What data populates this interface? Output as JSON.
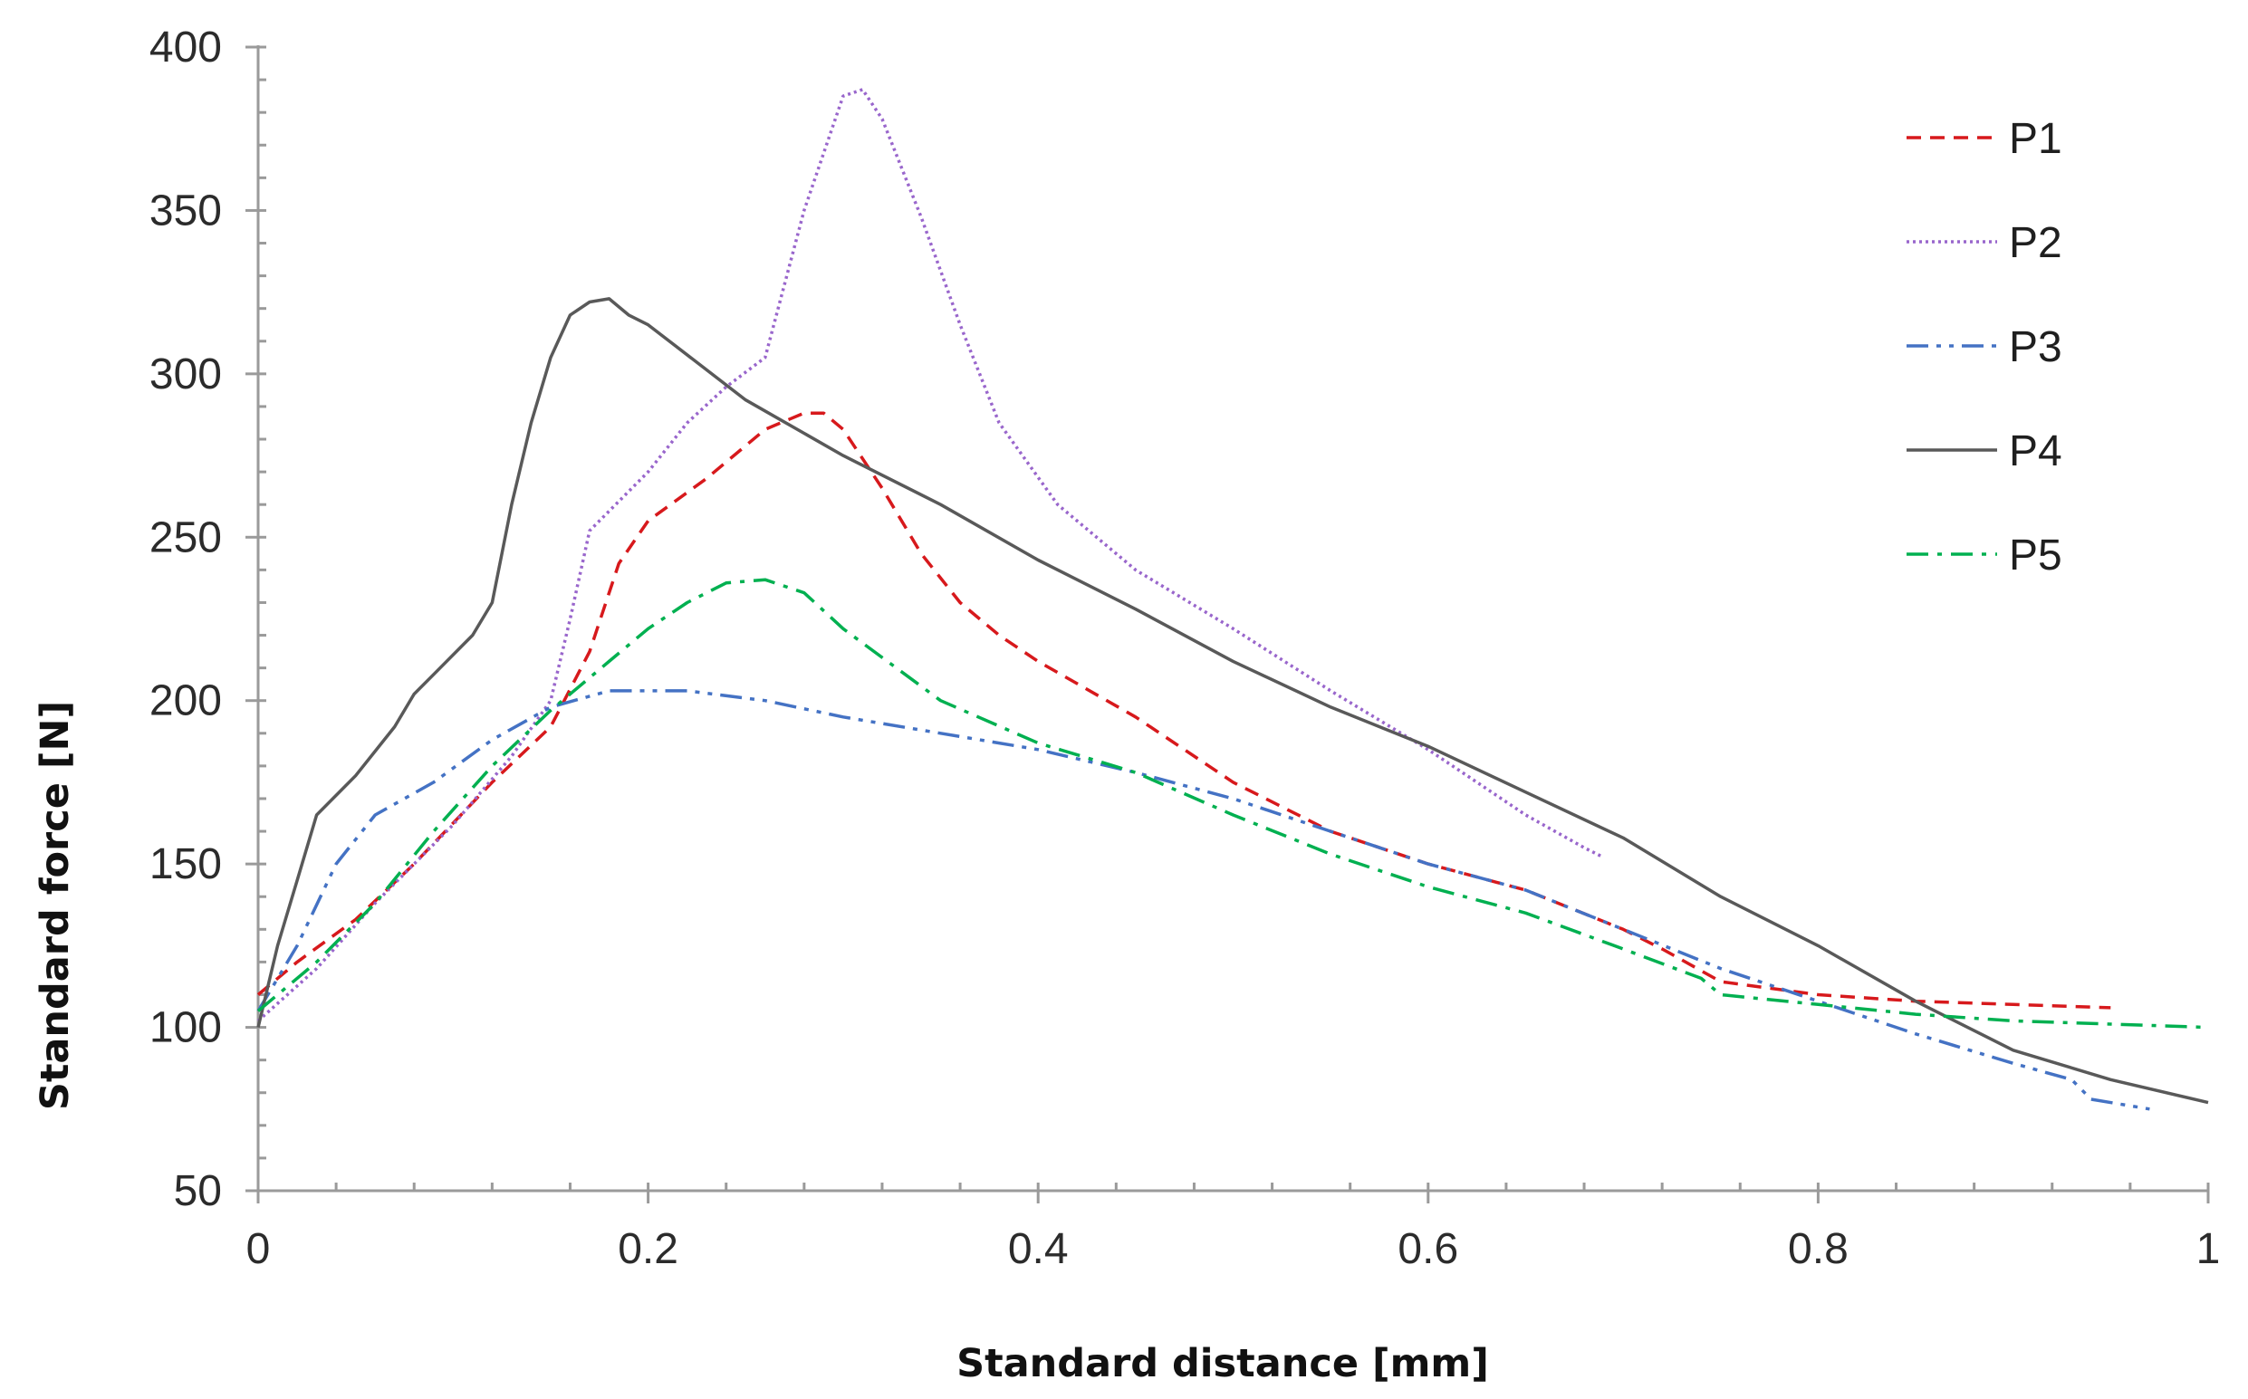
{
  "chart_data": {
    "type": "line",
    "title": "",
    "xlabel": "Standard distance [mm]",
    "ylabel": "Standard force [N]",
    "xlim": [
      0,
      1
    ],
    "ylim": [
      50,
      400
    ],
    "x_major_ticks": [
      0,
      0.2,
      0.4,
      0.6,
      0.8,
      1
    ],
    "x_tick_labels": [
      "0",
      "0.2",
      "0.4",
      "0.6",
      "0.8",
      "1"
    ],
    "x_minor_step": 0.04,
    "y_major_ticks": [
      50,
      100,
      150,
      200,
      250,
      300,
      350,
      400
    ],
    "y_tick_labels": [
      "50",
      "100",
      "150",
      "200",
      "250",
      "300",
      "350",
      "400"
    ],
    "y_minor_step": 10,
    "grid": false,
    "legend_position": "top-right",
    "series": [
      {
        "name": "P1",
        "color": "#d7191c",
        "style": "dashed",
        "x": [
          0,
          0.02,
          0.05,
          0.08,
          0.12,
          0.15,
          0.17,
          0.185,
          0.2,
          0.23,
          0.26,
          0.28,
          0.29,
          0.3,
          0.32,
          0.34,
          0.36,
          0.38,
          0.4,
          0.45,
          0.5,
          0.55,
          0.6,
          0.65,
          0.7,
          0.72,
          0.75,
          0.8,
          0.85,
          0.9,
          0.95
        ],
        "y": [
          110,
          120,
          133,
          150,
          175,
          192,
          215,
          242,
          255,
          268,
          283,
          288,
          288,
          283,
          265,
          245,
          230,
          220,
          212,
          195,
          175,
          160,
          150,
          142,
          130,
          124,
          114,
          110,
          108,
          107,
          106
        ]
      },
      {
        "name": "P2",
        "color": "#9966cc",
        "style": "dotted",
        "x": [
          0,
          0.03,
          0.06,
          0.1,
          0.13,
          0.15,
          0.16,
          0.17,
          0.2,
          0.22,
          0.24,
          0.26,
          0.28,
          0.3,
          0.31,
          0.32,
          0.34,
          0.36,
          0.38,
          0.41,
          0.45,
          0.5,
          0.55,
          0.6,
          0.65,
          0.68,
          0.69
        ],
        "y": [
          102,
          118,
          138,
          162,
          183,
          200,
          225,
          252,
          270,
          285,
          296,
          305,
          350,
          385,
          387,
          378,
          348,
          315,
          285,
          260,
          240,
          222,
          203,
          185,
          165,
          155,
          152
        ]
      },
      {
        "name": "P3",
        "color": "#4472c4",
        "style": "dash-dot-dot",
        "x": [
          0,
          0.02,
          0.04,
          0.06,
          0.09,
          0.12,
          0.15,
          0.18,
          0.2,
          0.22,
          0.26,
          0.3,
          0.35,
          0.4,
          0.45,
          0.5,
          0.55,
          0.6,
          0.65,
          0.7,
          0.75,
          0.8,
          0.85,
          0.9,
          0.93,
          0.94,
          0.97
        ],
        "y": [
          105,
          125,
          150,
          165,
          175,
          188,
          198,
          203,
          203,
          203,
          200,
          195,
          190,
          185,
          178,
          170,
          160,
          150,
          142,
          130,
          118,
          108,
          98,
          89,
          84,
          78,
          75
        ]
      },
      {
        "name": "P4",
        "color": "#595959",
        "style": "solid",
        "x": [
          0,
          0.01,
          0.02,
          0.03,
          0.05,
          0.07,
          0.08,
          0.09,
          0.11,
          0.12,
          0.13,
          0.14,
          0.15,
          0.16,
          0.17,
          0.18,
          0.19,
          0.2,
          0.25,
          0.3,
          0.35,
          0.4,
          0.45,
          0.5,
          0.55,
          0.6,
          0.65,
          0.7,
          0.75,
          0.8,
          0.85,
          0.9,
          0.95,
          1.0
        ],
        "y": [
          100,
          125,
          145,
          165,
          177,
          192,
          202,
          208,
          220,
          230,
          260,
          285,
          305,
          318,
          322,
          323,
          318,
          315,
          292,
          275,
          260,
          243,
          228,
          212,
          198,
          186,
          172,
          158,
          140,
          125,
          108,
          93,
          84,
          77
        ]
      },
      {
        "name": "P5",
        "color": "#00b050",
        "style": "dash-dot",
        "x": [
          0,
          0.03,
          0.06,
          0.09,
          0.12,
          0.15,
          0.18,
          0.2,
          0.22,
          0.24,
          0.26,
          0.28,
          0.3,
          0.35,
          0.4,
          0.45,
          0.5,
          0.55,
          0.6,
          0.65,
          0.7,
          0.74,
          0.75,
          0.8,
          0.85,
          0.9,
          0.95,
          1.0
        ],
        "y": [
          105,
          120,
          138,
          160,
          180,
          197,
          212,
          222,
          230,
          236,
          237,
          233,
          222,
          200,
          187,
          178,
          165,
          153,
          143,
          135,
          124,
          115,
          110,
          107,
          104,
          102,
          101,
          100
        ]
      }
    ]
  }
}
